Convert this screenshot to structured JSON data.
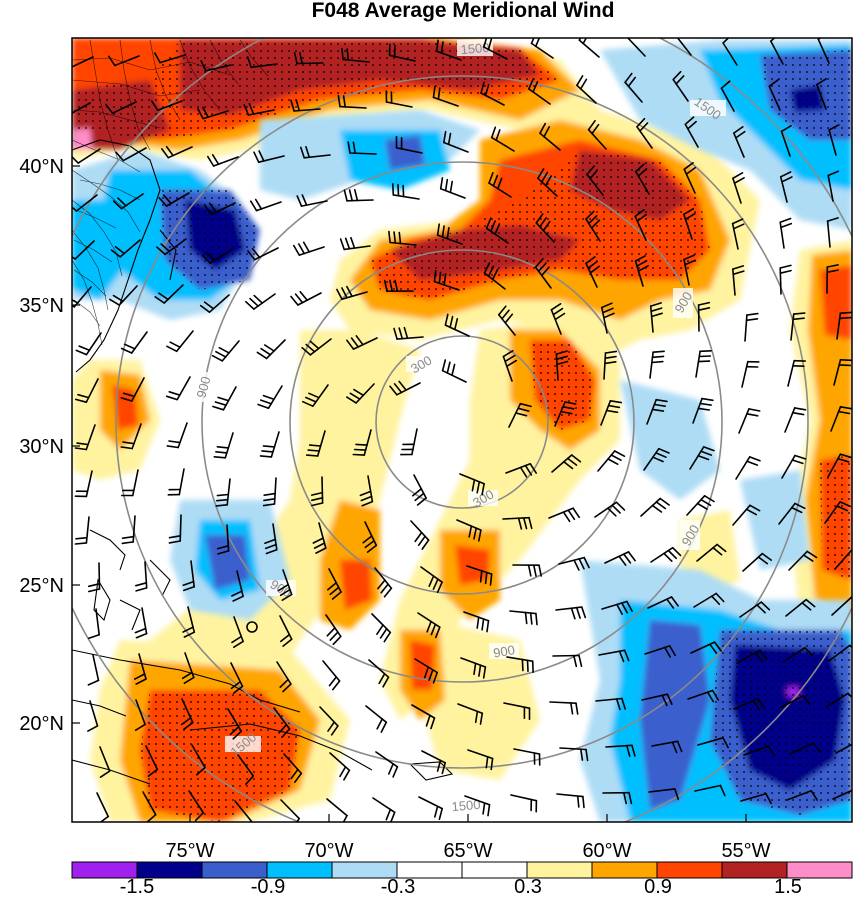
{
  "title": "F048 Average Meridional Wind",
  "map": {
    "lon_ticks": [
      "75°W",
      "70°W",
      "65°W",
      "60°W",
      "55°W"
    ],
    "lat_ticks": [
      "40°N",
      "35°N",
      "30°N",
      "25°N",
      "20°N"
    ],
    "range_ring_labels": [
      "300",
      "900",
      "1500"
    ],
    "colorbar": {
      "tick_labels": [
        "-1.5",
        "-0.9",
        "-0.3",
        "0.3",
        "0.9",
        "1.5"
      ],
      "colors": [
        "#a020f0",
        "#00008b",
        "#3a5fcd",
        "#00bfff",
        "#aedcf5",
        "#ffffff",
        "#ffffff",
        "#fff3a0",
        "#ffa500",
        "#ff4500",
        "#b22222",
        "#ff8ec8"
      ]
    },
    "stippling": "dots",
    "overlays": [
      "wind barbs",
      "range rings",
      "coastlines",
      "state and county boundaries"
    ]
  }
}
